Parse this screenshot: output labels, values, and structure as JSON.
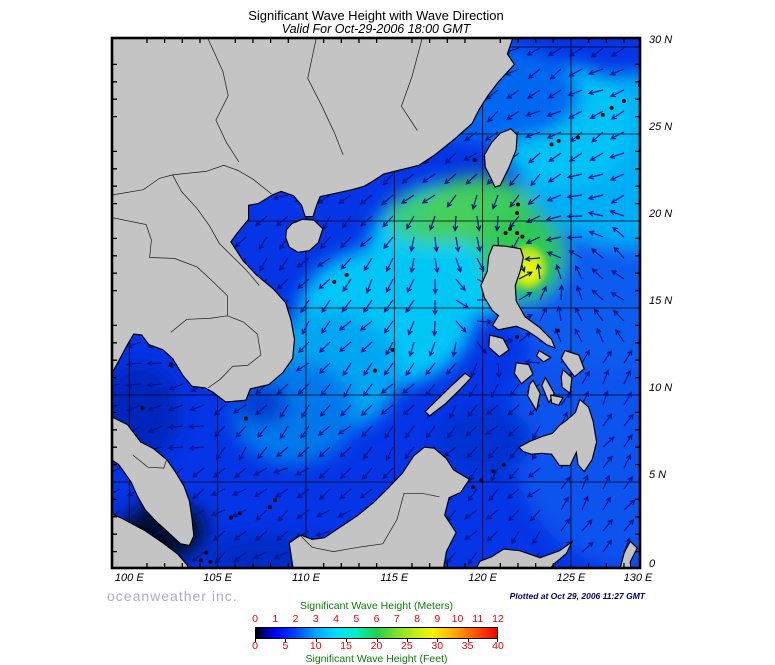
{
  "header": {
    "title": "Significant Wave Height with Wave Direction",
    "subtitle": "Valid For Oct-29-2006 18:00 GMT"
  },
  "footer": {
    "branding": "oceanweather inc.",
    "plotted": "Plotted at Oct 29, 2006 11:27 GMT"
  },
  "chart_data": {
    "type": "heatmap",
    "title": "Significant Wave Height with Wave Direction",
    "valid_time": "Oct-29-2006 18:00 GMT",
    "plotted_time": "Oct 29, 2006 11:27 GMT",
    "region": "South China Sea and Western Pacific",
    "units": "meters",
    "grid_interval_degrees": 5,
    "x_axis": {
      "ticks": [
        "100 E",
        "105 E",
        "110 E",
        "115 E",
        "120 E",
        "125 E",
        "130 E"
      ],
      "lon_values": [
        100,
        105,
        110,
        115,
        120,
        125,
        130
      ]
    },
    "y_axis": {
      "ticks": [
        "30 N",
        "25 N",
        "20 N",
        "15 N",
        "10 N",
        "5 N",
        "0"
      ],
      "lat_values": [
        30,
        25,
        20,
        15,
        10,
        5,
        0
      ]
    },
    "colorbar": {
      "top_label": "Significant Wave Height (Meters)",
      "bottom_label": "Significant Wave Height (Feet)",
      "meters_ticks": [
        0,
        1,
        2,
        3,
        4,
        5,
        6,
        7,
        8,
        9,
        10,
        11,
        12
      ],
      "feet_ticks": [
        0,
        5,
        10,
        15,
        20,
        25,
        30,
        35,
        40
      ],
      "stops": [
        {
          "m": 0,
          "color": "#000000"
        },
        {
          "m": 0.4,
          "color": "#000080"
        },
        {
          "m": 1,
          "color": "#0000ff"
        },
        {
          "m": 2,
          "color": "#0044ff"
        },
        {
          "m": 3,
          "color": "#00aaff"
        },
        {
          "m": 4,
          "color": "#00ddff"
        },
        {
          "m": 5,
          "color": "#00f0c0"
        },
        {
          "m": 6,
          "color": "#1fd24a"
        },
        {
          "m": 7,
          "color": "#7ee02a"
        },
        {
          "m": 8,
          "color": "#c8ee14"
        },
        {
          "m": 8.8,
          "color": "#f5f500"
        },
        {
          "m": 10,
          "color": "#ffa000"
        },
        {
          "m": 11,
          "color": "#ff4e00"
        },
        {
          "m": 12,
          "color": "#f50000"
        }
      ]
    },
    "storm": {
      "center_lon": 122.6,
      "center_lat": 17.4,
      "peak_wave_height_m": 8.5,
      "arrow_pattern": "cyclonic swirl around center, southwest-pointing swell across the South China Sea"
    },
    "sampled_grid": {
      "lons": [
        100,
        105,
        110,
        115,
        120,
        125,
        130
      ],
      "lats": [
        30,
        25,
        20,
        15,
        10,
        5,
        0
      ],
      "wave_height_m": [
        [
          null,
          null,
          null,
          null,
          2.5,
          3,
          3
        ],
        [
          null,
          null,
          null,
          null,
          3,
          3.5,
          3.5
        ],
        [
          null,
          null,
          1.5,
          4,
          5,
          4,
          3.5
        ],
        [
          null,
          null,
          3,
          4,
          4.5,
          2.5,
          2.5
        ],
        [
          null,
          1.5,
          2.5,
          2.5,
          1.5,
          2,
          2
        ],
        [
          null,
          1.5,
          2,
          1.8,
          1.5,
          1.5,
          1.8
        ],
        [
          null,
          1,
          1.5,
          1.5,
          1.2,
          1.5,
          1.5
        ]
      ],
      "minimum_m": {
        "lon": 101.5,
        "lat": 2.5,
        "value": 0.2
      }
    },
    "legend_position": "bottom-center",
    "colors": {
      "land": "#c4c4c4",
      "coast_outline": "#000000",
      "arrows": "#001489",
      "gridlines": "#000000",
      "axis_text": "#000000",
      "branding_text": "#a6aec9",
      "plotted_text": "#000066",
      "legend_label": "#0b7d0b",
      "legend_numbers": "#ee0000"
    }
  }
}
